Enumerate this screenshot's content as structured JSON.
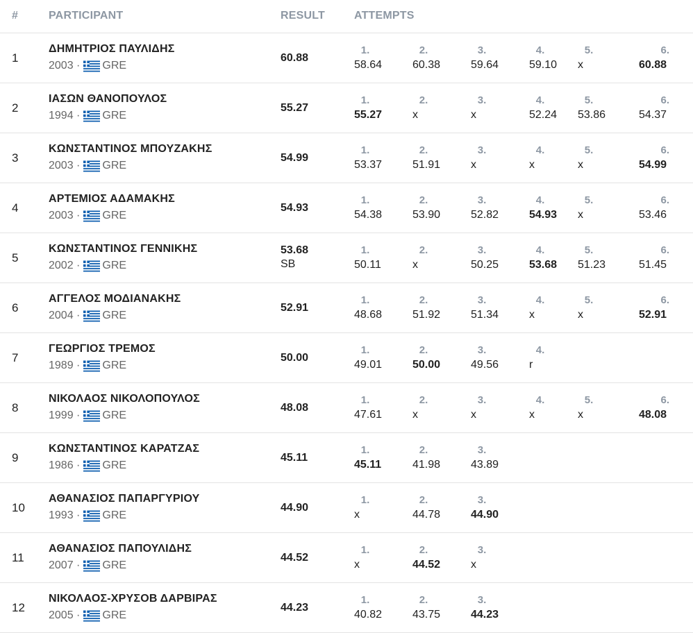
{
  "header": {
    "rank": "#",
    "participant": "PARTICIPANT",
    "result": "RESULT",
    "attempts": "ATTEMPTS"
  },
  "colors": {
    "header_text": "#8d97a3",
    "divider": "#e3e3e3",
    "flag_blue": "#0d5eaf"
  },
  "rows": [
    {
      "rank": "1",
      "name": "ΔΗΜΗΤΡΙΟΣ ΠΑΥΛΙΔΗΣ",
      "year": "2003",
      "country": "GRE",
      "result": "60.88",
      "note": "",
      "attempts": [
        {
          "n": "1.",
          "v": "58.64",
          "best": false
        },
        {
          "n": "2.",
          "v": "60.38",
          "best": false
        },
        {
          "n": "3.",
          "v": "59.64",
          "best": false
        },
        {
          "n": "4.",
          "v": "59.10",
          "best": false
        },
        {
          "n": "5.",
          "v": "x",
          "best": false
        },
        {
          "n": "6.",
          "v": "60.88",
          "best": true
        }
      ]
    },
    {
      "rank": "2",
      "name": "ΙΑΣΩΝ ΘΑΝΟΠΟΥΛΟΣ",
      "year": "1994",
      "country": "GRE",
      "result": "55.27",
      "note": "",
      "attempts": [
        {
          "n": "1.",
          "v": "55.27",
          "best": true
        },
        {
          "n": "2.",
          "v": "x",
          "best": false
        },
        {
          "n": "3.",
          "v": "x",
          "best": false
        },
        {
          "n": "4.",
          "v": "52.24",
          "best": false
        },
        {
          "n": "5.",
          "v": "53.86",
          "best": false
        },
        {
          "n": "6.",
          "v": "54.37",
          "best": false
        }
      ]
    },
    {
      "rank": "3",
      "name": "ΚΩΝΣΤΑΝΤΙΝΟΣ ΜΠΟΥΖΑΚΗΣ",
      "year": "2003",
      "country": "GRE",
      "result": "54.99",
      "note": "",
      "attempts": [
        {
          "n": "1.",
          "v": "53.37",
          "best": false
        },
        {
          "n": "2.",
          "v": "51.91",
          "best": false
        },
        {
          "n": "3.",
          "v": "x",
          "best": false
        },
        {
          "n": "4.",
          "v": "x",
          "best": false
        },
        {
          "n": "5.",
          "v": "x",
          "best": false
        },
        {
          "n": "6.",
          "v": "54.99",
          "best": true
        }
      ]
    },
    {
      "rank": "4",
      "name": "ΑΡΤΕΜΙΟΣ ΑΔΑΜΑΚΗΣ",
      "year": "2003",
      "country": "GRE",
      "result": "54.93",
      "note": "",
      "attempts": [
        {
          "n": "1.",
          "v": "54.38",
          "best": false
        },
        {
          "n": "2.",
          "v": "53.90",
          "best": false
        },
        {
          "n": "3.",
          "v": "52.82",
          "best": false
        },
        {
          "n": "4.",
          "v": "54.93",
          "best": true
        },
        {
          "n": "5.",
          "v": "x",
          "best": false
        },
        {
          "n": "6.",
          "v": "53.46",
          "best": false
        }
      ]
    },
    {
      "rank": "5",
      "name": "ΚΩΝΣΤΑΝΤΙΝΟΣ ΓΕΝΝΙΚΗΣ",
      "year": "2002",
      "country": "GRE",
      "result": "53.68",
      "note": "SB",
      "attempts": [
        {
          "n": "1.",
          "v": "50.11",
          "best": false
        },
        {
          "n": "2.",
          "v": "x",
          "best": false
        },
        {
          "n": "3.",
          "v": "50.25",
          "best": false
        },
        {
          "n": "4.",
          "v": "53.68",
          "best": true
        },
        {
          "n": "5.",
          "v": "51.23",
          "best": false
        },
        {
          "n": "6.",
          "v": "51.45",
          "best": false
        }
      ]
    },
    {
      "rank": "6",
      "name": "ΑΓΓΕΛΟΣ ΜΟΔΙΑΝΑΚΗΣ",
      "year": "2004",
      "country": "GRE",
      "result": "52.91",
      "note": "",
      "attempts": [
        {
          "n": "1.",
          "v": "48.68",
          "best": false
        },
        {
          "n": "2.",
          "v": "51.92",
          "best": false
        },
        {
          "n": "3.",
          "v": "51.34",
          "best": false
        },
        {
          "n": "4.",
          "v": "x",
          "best": false
        },
        {
          "n": "5.",
          "v": "x",
          "best": false
        },
        {
          "n": "6.",
          "v": "52.91",
          "best": true
        }
      ]
    },
    {
      "rank": "7",
      "name": "ΓΕΩΡΓΙΟΣ ΤΡΕΜΟΣ",
      "year": "1989",
      "country": "GRE",
      "result": "50.00",
      "note": "",
      "attempts": [
        {
          "n": "1.",
          "v": "49.01",
          "best": false
        },
        {
          "n": "2.",
          "v": "50.00",
          "best": true
        },
        {
          "n": "3.",
          "v": "49.56",
          "best": false
        },
        {
          "n": "4.",
          "v": "r",
          "best": false
        }
      ]
    },
    {
      "rank": "8",
      "name": "ΝΙΚΟΛΑΟΣ ΝΙΚΟΛΟΠΟΥΛΟΣ",
      "year": "1999",
      "country": "GRE",
      "result": "48.08",
      "note": "",
      "attempts": [
        {
          "n": "1.",
          "v": "47.61",
          "best": false
        },
        {
          "n": "2.",
          "v": "x",
          "best": false
        },
        {
          "n": "3.",
          "v": "x",
          "best": false
        },
        {
          "n": "4.",
          "v": "x",
          "best": false
        },
        {
          "n": "5.",
          "v": "x",
          "best": false
        },
        {
          "n": "6.",
          "v": "48.08",
          "best": true
        }
      ]
    },
    {
      "rank": "9",
      "name": "ΚΩΝΣΤΑΝΤΙΝΟΣ ΚΑΡΑΤΖΑΣ",
      "year": "1986",
      "country": "GRE",
      "result": "45.11",
      "note": "",
      "attempts": [
        {
          "n": "1.",
          "v": "45.11",
          "best": true
        },
        {
          "n": "2.",
          "v": "41.98",
          "best": false
        },
        {
          "n": "3.",
          "v": "43.89",
          "best": false
        }
      ]
    },
    {
      "rank": "10",
      "name": "ΑΘΑΝΑΣΙΟΣ ΠΑΠΑΡΓΥΡΙΟΥ",
      "year": "1993",
      "country": "GRE",
      "result": "44.90",
      "note": "",
      "attempts": [
        {
          "n": "1.",
          "v": "x",
          "best": false
        },
        {
          "n": "2.",
          "v": "44.78",
          "best": false
        },
        {
          "n": "3.",
          "v": "44.90",
          "best": true
        }
      ]
    },
    {
      "rank": "11",
      "name": "ΑΘΑΝΑΣΙΟΣ ΠΑΠΟΥΛΙΔΗΣ",
      "year": "2007",
      "country": "GRE",
      "result": "44.52",
      "note": "",
      "attempts": [
        {
          "n": "1.",
          "v": "x",
          "best": false
        },
        {
          "n": "2.",
          "v": "44.52",
          "best": true
        },
        {
          "n": "3.",
          "v": "x",
          "best": false
        }
      ]
    },
    {
      "rank": "12",
      "name": "ΝΙΚΟΛΑΟΣ-ΧΡΥΣΟΒ ΔΑΡΒΙΡΑΣ",
      "year": "2005",
      "country": "GRE",
      "result": "44.23",
      "note": "",
      "attempts": [
        {
          "n": "1.",
          "v": "40.82",
          "best": false
        },
        {
          "n": "2.",
          "v": "43.75",
          "best": false
        },
        {
          "n": "3.",
          "v": "44.23",
          "best": true
        }
      ]
    }
  ]
}
